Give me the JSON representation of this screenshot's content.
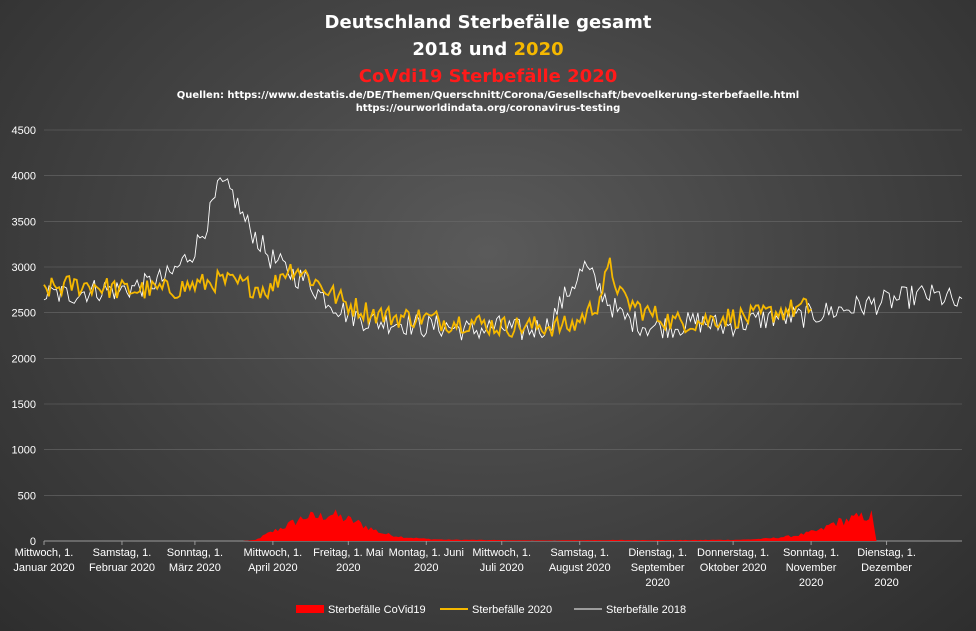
{
  "chart_data": {
    "type": "line",
    "title": {
      "line1": "Deutschland  Sterbefälle  gesamt",
      "line2_prefix": "2018 und ",
      "line2_highlight": "2020",
      "line3": "CoVdi19  Sterbefälle  2020",
      "source1": "Quellen: https://www.destatis.de/DE/Themen/Querschnitt/Corona/Gesellschaft/bevoelkerung-sterbefaelle.html",
      "source2": "https://ourworldindata.org/coronavirus-testing"
    },
    "colors": {
      "title": "#ffffff",
      "highlight": "#f5b800",
      "covid_title": "#ff1a1a",
      "series_2018": "#ffffff",
      "series_2020": "#f5b800",
      "series_covid": "#ff0000"
    },
    "ylim": [
      0,
      4500
    ],
    "y_ticks": [
      "0",
      "500",
      "1000",
      "1500",
      "2000",
      "2500",
      "3000",
      "3500",
      "4000",
      "4500"
    ],
    "x_range_days": [
      1,
      366
    ],
    "x_tick_labels": [
      [
        "Mittwoch, 1.",
        "Januar 2020"
      ],
      [
        "Samstag, 1.",
        "Februar 2020"
      ],
      [
        "Sonntag, 1.",
        "März 2020"
      ],
      [
        "Mittwoch, 1.",
        "April 2020"
      ],
      [
        "Freitag, 1. Mai",
        "2020"
      ],
      [
        "Montag, 1. Juni",
        "2020"
      ],
      [
        "Mittwoch, 1.",
        "Juli 2020"
      ],
      [
        "Samstag, 1.",
        "August 2020"
      ],
      [
        "Dienstag, 1.",
        "September",
        "2020"
      ],
      [
        "Donnerstag, 1.",
        "Oktober 2020"
      ],
      [
        "Sonntag, 1.",
        "November",
        "2020"
      ],
      [
        "Dienstag, 1.",
        "Dezember",
        "2020"
      ]
    ],
    "series_2018": {
      "name": "Sterbefälle 2018",
      "x_day": [
        1,
        11,
        21,
        31,
        41,
        51,
        61,
        66,
        71,
        76,
        81,
        86,
        91,
        96,
        101,
        106,
        111,
        121,
        131,
        141,
        151,
        161,
        171,
        181,
        191,
        201,
        211,
        216,
        221,
        226,
        231,
        241,
        251,
        261,
        271,
        281,
        291,
        301,
        311,
        321,
        331,
        341,
        351,
        361,
        366
      ],
      "values": [
        2700,
        2700,
        2750,
        2750,
        2800,
        2900,
        3200,
        3500,
        3900,
        3800,
        3500,
        3300,
        3100,
        3000,
        2900,
        2850,
        2700,
        2500,
        2400,
        2400,
        2350,
        2350,
        2300,
        2350,
        2300,
        2350,
        2800,
        3000,
        2800,
        2600,
        2450,
        2350,
        2350,
        2400,
        2350,
        2400,
        2450,
        2450,
        2500,
        2550,
        2600,
        2650,
        2700,
        2650,
        2550
      ]
    },
    "series_2020": {
      "name": "Sterbefälle 2020",
      "x_day": [
        1,
        11,
        21,
        31,
        41,
        51,
        61,
        71,
        81,
        91,
        96,
        101,
        106,
        111,
        121,
        131,
        141,
        151,
        161,
        171,
        181,
        191,
        201,
        211,
        221,
        226,
        231,
        241,
        251,
        261,
        271,
        281,
        291,
        301,
        306
      ],
      "values": [
        2750,
        2800,
        2800,
        2750,
        2750,
        2750,
        2800,
        2850,
        2800,
        2750,
        2950,
        3000,
        2900,
        2800,
        2600,
        2500,
        2450,
        2450,
        2400,
        2400,
        2350,
        2350,
        2350,
        2350,
        2600,
        3000,
        2650,
        2500,
        2400,
        2400,
        2450,
        2450,
        2500,
        2550,
        2550
      ]
    },
    "series_covid": {
      "name": "Sterbefälle CoVid19",
      "x_day": [
        1,
        80,
        85,
        90,
        95,
        100,
        105,
        110,
        115,
        120,
        125,
        130,
        135,
        140,
        145,
        150,
        155,
        160,
        180,
        200,
        220,
        240,
        260,
        280,
        290,
        300,
        310,
        315,
        320,
        325,
        330,
        332
      ],
      "values": [
        0,
        0,
        10,
        80,
        140,
        200,
        270,
        260,
        300,
        250,
        210,
        150,
        90,
        60,
        40,
        30,
        20,
        15,
        10,
        5,
        10,
        10,
        10,
        15,
        30,
        60,
        120,
        200,
        230,
        260,
        280,
        0
      ]
    }
  }
}
